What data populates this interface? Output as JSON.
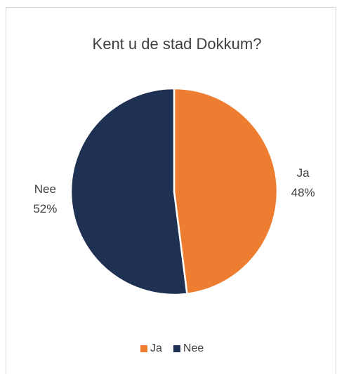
{
  "chart_data": {
    "type": "pie",
    "title": "Kent u de stad Dokkum?",
    "categories": [
      "Ja",
      "Nee"
    ],
    "values": [
      48,
      52
    ],
    "value_labels": [
      "48%",
      "52%"
    ],
    "colors": [
      "#ED7D31",
      "#1F3153"
    ],
    "legend": "bottom"
  }
}
